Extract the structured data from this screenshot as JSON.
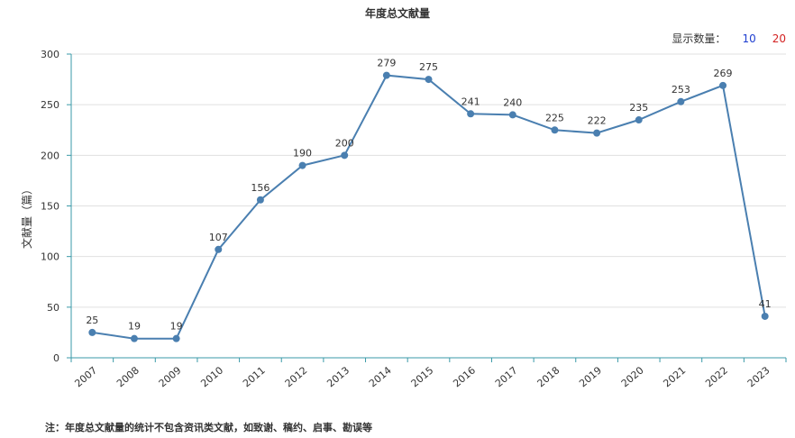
{
  "title": "年度总文献量",
  "display_count": {
    "label": "显示数量：",
    "options": [
      "10",
      "20"
    ]
  },
  "footnote": "注：年度总文献量的统计不包含资讯类文献，如致谢、稿约、启事、勘误等",
  "colors": {
    "line": "#4a7fb0",
    "axis": "#3a9aa8",
    "grid": "#e0e0e0",
    "text": "#333333"
  },
  "chart_data": {
    "type": "line",
    "ylabel": "文献量（篇）",
    "xlabel": "",
    "ylim": [
      0,
      300
    ],
    "yticks": [
      0,
      50,
      100,
      150,
      200,
      250,
      300
    ],
    "categories": [
      "2007",
      "2008",
      "2009",
      "2010",
      "2011",
      "2012",
      "2013",
      "2014",
      "2015",
      "2016",
      "2017",
      "2018",
      "2019",
      "2020",
      "2021",
      "2022",
      "2023"
    ],
    "values": [
      25,
      19,
      19,
      107,
      156,
      190,
      200,
      279,
      275,
      241,
      240,
      225,
      222,
      235,
      253,
      269,
      41
    ]
  }
}
